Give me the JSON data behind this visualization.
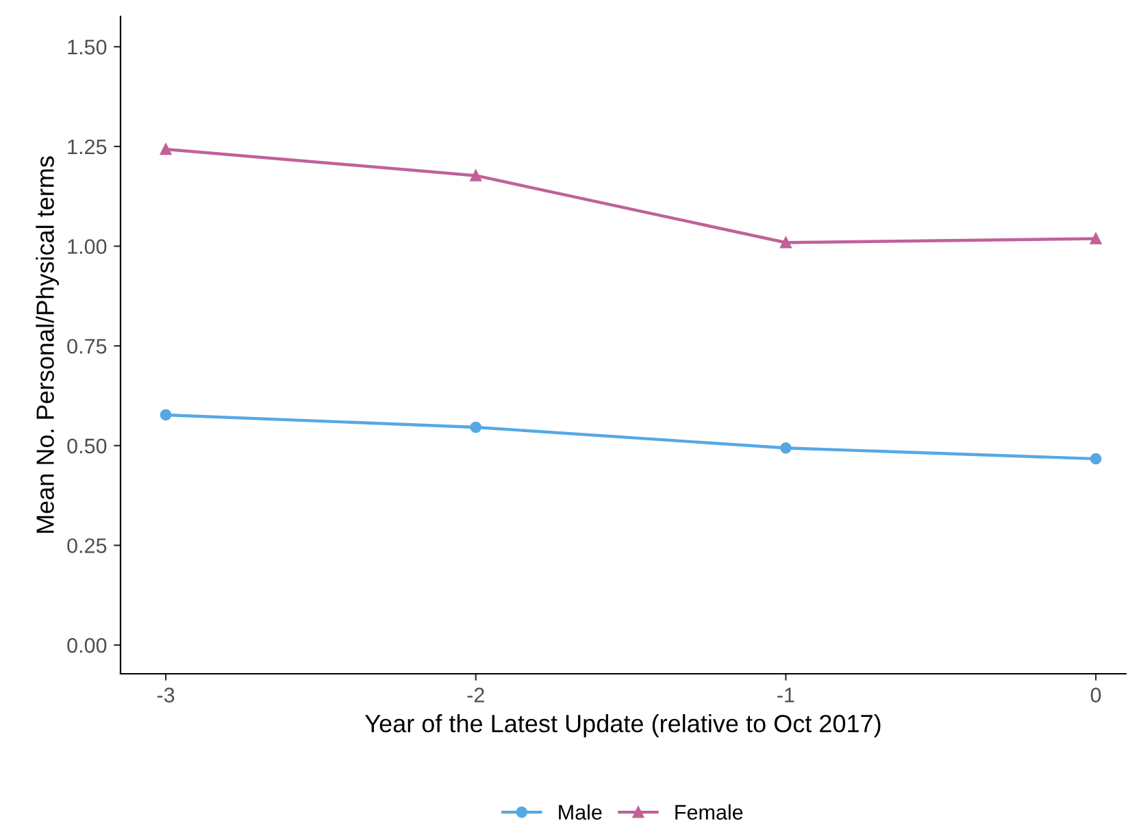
{
  "chart_data": {
    "type": "line",
    "xlabel": "Year of the Latest Update (relative to Oct 2017)",
    "ylabel": "Mean No. Personal/Physical terms",
    "x": [
      -3,
      -2,
      -1,
      0
    ],
    "series": [
      {
        "name": "Male",
        "color": "#56a8e4",
        "marker": "circle",
        "values": [
          0.577,
          0.546,
          0.494,
          0.467
        ]
      },
      {
        "name": "Female",
        "color": "#c0619a",
        "marker": "triangle",
        "values": [
          1.243,
          1.177,
          1.009,
          1.019
        ]
      }
    ],
    "xlim": [
      -3.146,
      0.097
    ],
    "xticks": [
      -3,
      -2,
      -1,
      0
    ],
    "ylim": [
      -0.072,
      1.576
    ],
    "yticks": [
      {
        "value": 0,
        "label": "0.00"
      },
      {
        "value": 0.25,
        "label": "0.25"
      },
      {
        "value": 0.5,
        "label": "0.50"
      },
      {
        "value": 0.75,
        "label": "0.75"
      },
      {
        "value": 1,
        "label": "1.00"
      },
      {
        "value": 1.25,
        "label": "1.25"
      },
      {
        "value": 1.5,
        "label": "1.50"
      }
    ],
    "grid": false,
    "legend": "bottom",
    "line_style": "solid"
  }
}
